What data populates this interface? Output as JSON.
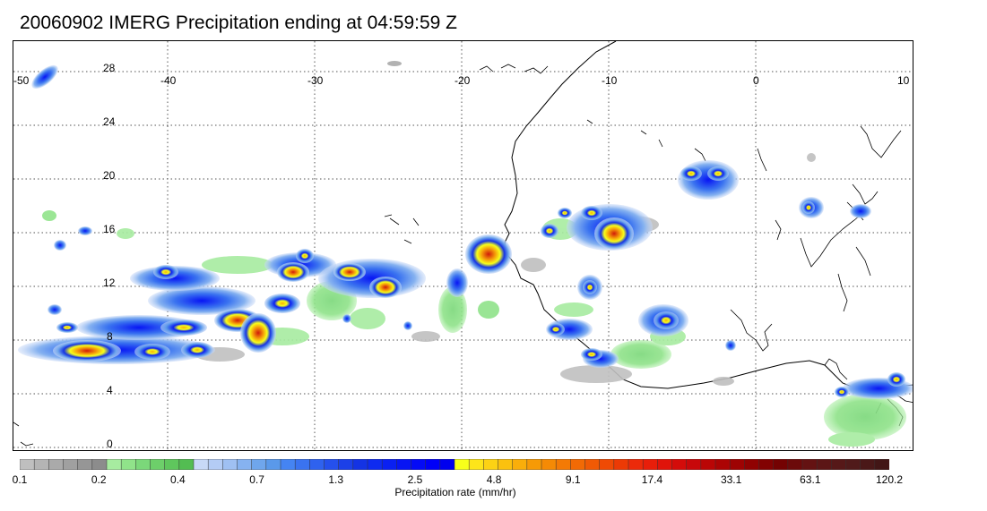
{
  "title": "20060902 IMERG Precipitation ending at 04:59:59 Z",
  "map": {
    "lon_range": [
      -50,
      10
    ],
    "lat_range": [
      -1,
      30
    ],
    "lon_labels": [
      "-50",
      "-40",
      "-30",
      "-20",
      "-10",
      "0",
      "10"
    ],
    "lat_labels": [
      "28",
      "24",
      "20",
      "16",
      "12",
      "8",
      "4",
      "0"
    ],
    "gridlines": "dotted"
  },
  "colorbar": {
    "title": "Precipitation rate (mm/hr)",
    "tick_labels": [
      "0.1",
      "0.2",
      "0.4",
      "0.7",
      "1.3",
      "2.5",
      "4.8",
      "9.1",
      "17.4",
      "33.1",
      "63.1",
      "120.2"
    ],
    "colors": [
      "#bfbfbf",
      "#b4b4b4",
      "#aaaaaa",
      "#a0a0a0",
      "#969696",
      "#8c8c8c",
      "#a7eca0",
      "#90e38a",
      "#7bd87a",
      "#6dcf6a",
      "#5fc65d",
      "#53bd52",
      "#c8d9f7",
      "#b4ccf5",
      "#9fc0f2",
      "#86b2f0",
      "#6fa6ec",
      "#5a99ea",
      "#4584f2",
      "#3a73f0",
      "#2f62ee",
      "#2550ec",
      "#1c40e8",
      "#1433e4",
      "#0e2bf0",
      "#0a20f2",
      "#0715f4",
      "#040bf6",
      "#0000f8",
      "#0000ee",
      "#f7ff1a",
      "#fde51a",
      "#fcd214",
      "#fbc10e",
      "#f9ae0a",
      "#f69a06",
      "#f58a05",
      "#f47a05",
      "#f26a05",
      "#f05a05",
      "#ef4a05",
      "#ec3a05",
      "#ec2a0a",
      "#e81e0a",
      "#e0140a",
      "#d40c0a",
      "#c8080a",
      "#ba0606",
      "#ac0404",
      "#9e0303",
      "#900202",
      "#820202",
      "#740202",
      "#6c0a0a",
      "#641212",
      "#5c1616",
      "#561818",
      "#501a1a",
      "#4a1818",
      "#421616"
    ]
  }
}
